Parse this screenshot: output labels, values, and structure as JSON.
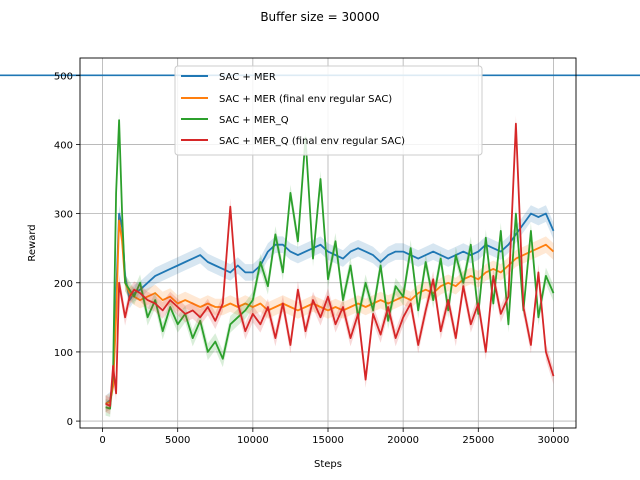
{
  "chart_data": {
    "type": "line",
    "title": "Buffer size = 30000",
    "xlabel": "Steps",
    "ylabel": "Reward",
    "xlim": [
      -1500,
      31500
    ],
    "ylim": [
      -10,
      525
    ],
    "xticks": [
      0,
      5000,
      10000,
      15000,
      20000,
      25000,
      30000
    ],
    "yticks": [
      0,
      100,
      200,
      300,
      400,
      500
    ],
    "grid": true,
    "legend_position": "top-center",
    "reference_line": {
      "y": 500,
      "color": "#1f77b4"
    },
    "series": [
      {
        "name": "SAC + MER",
        "color": "#1f77b4",
        "x": [
          200,
          500,
          700,
          900,
          1100,
          1300,
          1500,
          1800,
          2100,
          2500,
          3000,
          3500,
          4000,
          4500,
          5000,
          5500,
          6000,
          6500,
          7000,
          7500,
          8000,
          8500,
          9000,
          9500,
          10000,
          10500,
          11000,
          11500,
          12000,
          12500,
          13000,
          13500,
          14000,
          14500,
          15000,
          15500,
          16000,
          16500,
          17000,
          17500,
          18000,
          18500,
          19000,
          19500,
          20000,
          20500,
          21000,
          21500,
          22000,
          22500,
          23000,
          23500,
          24000,
          24500,
          25000,
          25500,
          26000,
          26500,
          27000,
          27500,
          28000,
          28500,
          29000,
          29500,
          30000
        ],
        "y": [
          25,
          30,
          60,
          180,
          300,
          280,
          210,
          175,
          185,
          190,
          200,
          210,
          215,
          220,
          225,
          230,
          235,
          240,
          230,
          225,
          220,
          215,
          225,
          215,
          215,
          225,
          245,
          255,
          255,
          245,
          240,
          245,
          250,
          255,
          245,
          240,
          235,
          245,
          250,
          245,
          240,
          230,
          240,
          245,
          245,
          240,
          235,
          240,
          245,
          240,
          235,
          240,
          245,
          240,
          245,
          255,
          250,
          245,
          255,
          270,
          285,
          300,
          295,
          300,
          275
        ]
      },
      {
        "name": "SAC + MER (final env regular SAC)",
        "color": "#ff7f0e",
        "x": [
          200,
          500,
          700,
          900,
          1100,
          1300,
          1500,
          1800,
          2100,
          2500,
          3000,
          3500,
          4000,
          4500,
          5000,
          5500,
          6000,
          6500,
          7000,
          7500,
          8000,
          8500,
          9000,
          9500,
          10000,
          10500,
          11000,
          11500,
          12000,
          12500,
          13000,
          13500,
          14000,
          14500,
          15000,
          15500,
          16000,
          16500,
          17000,
          17500,
          18000,
          18500,
          19000,
          19500,
          20000,
          20500,
          21000,
          21500,
          22000,
          22500,
          23000,
          23500,
          24000,
          24500,
          25000,
          25500,
          26000,
          26500,
          27000,
          27500,
          28000,
          28500,
          29000,
          29500,
          30000
        ],
        "y": [
          25,
          28,
          50,
          150,
          290,
          260,
          200,
          185,
          180,
          175,
          180,
          185,
          175,
          180,
          170,
          175,
          170,
          165,
          170,
          165,
          165,
          170,
          165,
          170,
          165,
          170,
          160,
          165,
          170,
          165,
          160,
          165,
          170,
          165,
          160,
          165,
          160,
          165,
          170,
          165,
          170,
          175,
          170,
          175,
          180,
          175,
          185,
          190,
          185,
          195,
          200,
          195,
          205,
          210,
          205,
          215,
          220,
          215,
          225,
          235,
          240,
          245,
          250,
          255,
          245
        ]
      },
      {
        "name": "SAC + MER_Q",
        "color": "#2ca02c",
        "x": [
          200,
          500,
          700,
          900,
          1100,
          1300,
          1500,
          1800,
          2100,
          2500,
          3000,
          3500,
          4000,
          4500,
          5000,
          5500,
          6000,
          6500,
          7000,
          7500,
          8000,
          8500,
          9000,
          9500,
          10000,
          10500,
          11000,
          11500,
          12000,
          12500,
          13000,
          13500,
          14000,
          14500,
          15000,
          15500,
          16000,
          16500,
          17000,
          17500,
          18000,
          18500,
          19000,
          19500,
          20000,
          20500,
          21000,
          21500,
          22000,
          22500,
          23000,
          23500,
          24000,
          24500,
          25000,
          25500,
          26000,
          26500,
          27000,
          27500,
          28000,
          28500,
          29000,
          29500,
          30000
        ],
        "y": [
          20,
          18,
          70,
          330,
          435,
          300,
          200,
          190,
          180,
          200,
          150,
          175,
          130,
          165,
          140,
          155,
          120,
          145,
          100,
          115,
          90,
          140,
          150,
          160,
          175,
          230,
          195,
          270,
          215,
          330,
          260,
          410,
          235,
          350,
          205,
          260,
          175,
          225,
          150,
          200,
          160,
          225,
          145,
          195,
          180,
          250,
          160,
          230,
          175,
          235,
          160,
          240,
          200,
          255,
          155,
          265,
          170,
          275,
          140,
          300,
          160,
          275,
          150,
          210,
          185
        ]
      },
      {
        "name": "SAC + MER_Q (final env regular SAC)",
        "color": "#d62728",
        "x": [
          200,
          500,
          700,
          900,
          1100,
          1300,
          1500,
          1800,
          2100,
          2500,
          3000,
          3500,
          4000,
          4500,
          5000,
          5500,
          6000,
          6500,
          7000,
          7500,
          8000,
          8500,
          9000,
          9500,
          10000,
          10500,
          11000,
          11500,
          12000,
          12500,
          13000,
          13500,
          14000,
          14500,
          15000,
          15500,
          16000,
          16500,
          17000,
          17500,
          18000,
          18500,
          19000,
          19500,
          20000,
          20500,
          21000,
          21500,
          22000,
          22500,
          23000,
          23500,
          24000,
          24500,
          25000,
          25500,
          26000,
          26500,
          27000,
          27500,
          28000,
          28500,
          29000,
          29500,
          30000
        ],
        "y": [
          25,
          22,
          80,
          40,
          200,
          175,
          150,
          180,
          190,
          185,
          175,
          170,
          160,
          175,
          165,
          155,
          160,
          150,
          165,
          145,
          170,
          310,
          170,
          130,
          155,
          140,
          165,
          120,
          170,
          110,
          190,
          130,
          175,
          150,
          180,
          140,
          165,
          120,
          155,
          60,
          155,
          125,
          165,
          120,
          150,
          170,
          110,
          160,
          205,
          130,
          175,
          120,
          195,
          140,
          170,
          100,
          210,
          155,
          180,
          430,
          165,
          110,
          215,
          100,
          65
        ]
      }
    ]
  }
}
